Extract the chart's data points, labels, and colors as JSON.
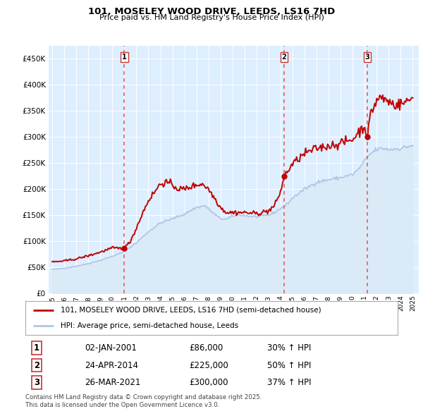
{
  "title": "101, MOSELEY WOOD DRIVE, LEEDS, LS16 7HD",
  "subtitle": "Price paid vs. HM Land Registry's House Price Index (HPI)",
  "legend_line1": "101, MOSELEY WOOD DRIVE, LEEDS, LS16 7HD (semi-detached house)",
  "legend_line2": "HPI: Average price, semi-detached house, Leeds",
  "footer": "Contains HM Land Registry data © Crown copyright and database right 2025.\nThis data is licensed under the Open Government Licence v3.0.",
  "transactions": [
    {
      "num": 1,
      "date": "02-JAN-2001",
      "price": "£86,000",
      "change": "30% ↑ HPI",
      "x_year": 2001.0,
      "price_val": 86000
    },
    {
      "num": 2,
      "date": "24-APR-2014",
      "price": "£225,000",
      "change": "50% ↑ HPI",
      "x_year": 2014.3,
      "price_val": 225000
    },
    {
      "num": 3,
      "date": "26-MAR-2021",
      "price": "£300,000",
      "change": "37% ↑ HPI",
      "x_year": 2021.23,
      "price_val": 300000
    }
  ],
  "hpi_color": "#adc6e5",
  "hpi_fill_color": "#daeaf7",
  "price_color": "#c00000",
  "dashed_color": "#e06060",
  "background_color": "#ffffff",
  "plot_bg_color": "#ddeeff",
  "grid_color": "#ffffff",
  "ylim": [
    0,
    475000
  ],
  "yticks": [
    0,
    50000,
    100000,
    150000,
    200000,
    250000,
    300000,
    350000,
    400000,
    450000
  ],
  "xlim_start": 1994.7,
  "xlim_end": 2025.5,
  "xticks": [
    1995,
    1996,
    1997,
    1998,
    1999,
    2000,
    2001,
    2002,
    2003,
    2004,
    2005,
    2006,
    2007,
    2008,
    2009,
    2010,
    2011,
    2012,
    2013,
    2014,
    2015,
    2016,
    2017,
    2018,
    2019,
    2020,
    2021,
    2022,
    2023,
    2024,
    2025
  ]
}
